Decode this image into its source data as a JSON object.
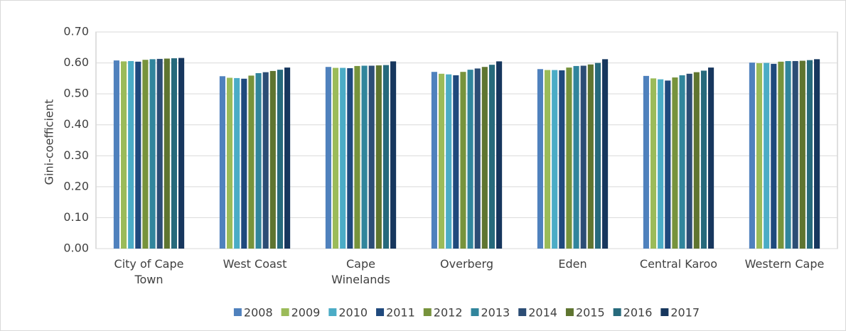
{
  "chart_data": {
    "type": "bar",
    "y_label": "Gini-coefficient",
    "categories": [
      "City of Cape Town",
      "West Coast",
      "Cape Winelands",
      "Overberg",
      "Eden",
      "Central Karoo",
      "Western Cape"
    ],
    "series": [
      {
        "name": "2008",
        "color": "#4f81bd",
        "values": [
          0.608,
          0.557,
          0.587,
          0.571,
          0.58,
          0.558,
          0.601
        ]
      },
      {
        "name": "2009",
        "color": "#9bbb59",
        "values": [
          0.605,
          0.552,
          0.584,
          0.565,
          0.577,
          0.55,
          0.599
        ]
      },
      {
        "name": "2010",
        "color": "#4bacc6",
        "values": [
          0.606,
          0.551,
          0.584,
          0.563,
          0.577,
          0.547,
          0.6
        ]
      },
      {
        "name": "2011",
        "color": "#1f497d",
        "values": [
          0.604,
          0.549,
          0.583,
          0.56,
          0.576,
          0.543,
          0.597
        ]
      },
      {
        "name": "2012",
        "color": "#77933c",
        "values": [
          0.61,
          0.559,
          0.59,
          0.571,
          0.585,
          0.553,
          0.604
        ]
      },
      {
        "name": "2013",
        "color": "#31859c",
        "values": [
          0.612,
          0.567,
          0.591,
          0.578,
          0.59,
          0.56,
          0.606
        ]
      },
      {
        "name": "2014",
        "color": "#2c4d75",
        "values": [
          0.613,
          0.57,
          0.591,
          0.582,
          0.591,
          0.565,
          0.606
        ]
      },
      {
        "name": "2015",
        "color": "#5f7530",
        "values": [
          0.614,
          0.574,
          0.592,
          0.587,
          0.595,
          0.57,
          0.607
        ]
      },
      {
        "name": "2016",
        "color": "#276a7c",
        "values": [
          0.615,
          0.578,
          0.593,
          0.594,
          0.6,
          0.575,
          0.609
        ]
      },
      {
        "name": "2017",
        "color": "#17375e",
        "values": [
          0.616,
          0.585,
          0.605,
          0.605,
          0.612,
          0.585,
          0.612
        ]
      }
    ],
    "ylim": [
      0,
      0.7
    ],
    "yticks": [
      {
        "value": 0,
        "label": "0.00"
      },
      {
        "value": 0.1,
        "label": "0.10"
      },
      {
        "value": 0.2,
        "label": "0.20"
      },
      {
        "value": 0.3,
        "label": "0.30"
      },
      {
        "value": 0.4,
        "label": "0.40"
      },
      {
        "value": 0.5,
        "label": "0.50"
      },
      {
        "value": 0.6,
        "label": "0.60"
      },
      {
        "value": 0.7,
        "label": "0.70"
      }
    ],
    "grid": true,
    "legend": "bottom"
  }
}
